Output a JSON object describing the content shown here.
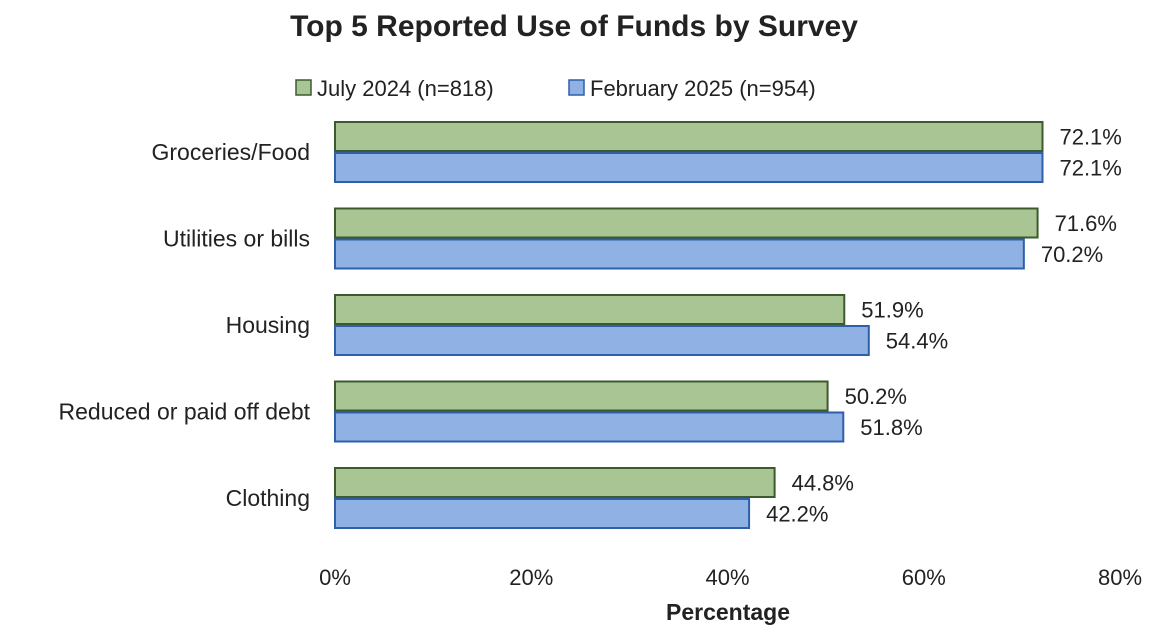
{
  "chart_data": {
    "type": "bar",
    "orientation": "horizontal",
    "title": "Top 5 Reported Use of Funds by Survey",
    "xlabel": "Percentage",
    "ylabel": "",
    "categories": [
      "Groceries/Food",
      "Utilities or bills",
      "Housing",
      "Reduced or paid off debt",
      "Clothing"
    ],
    "series": [
      {
        "name": "July 2024 (n=818)",
        "color": "#a9c593",
        "edge_color": "#3d5a2f",
        "values": [
          72.1,
          71.6,
          51.9,
          50.2,
          44.8
        ],
        "labels": [
          "72.1%",
          "71.6%",
          "51.9%",
          "50.2%",
          "44.8%"
        ]
      },
      {
        "name": "February 2025 (n=954)",
        "color": "#8fb1e3",
        "edge_color": "#2f5fa8",
        "values": [
          72.1,
          70.2,
          54.4,
          51.8,
          42.2
        ],
        "labels": [
          "72.1%",
          "70.2%",
          "54.4%",
          "51.8%",
          "42.2%"
        ]
      }
    ],
    "xlim": [
      0,
      80
    ],
    "xticks": [
      0,
      20,
      40,
      60,
      80
    ],
    "xtick_labels": [
      "0%",
      "20%",
      "40%",
      "60%",
      "80%"
    ],
    "grid": false,
    "legend_position": "top"
  }
}
